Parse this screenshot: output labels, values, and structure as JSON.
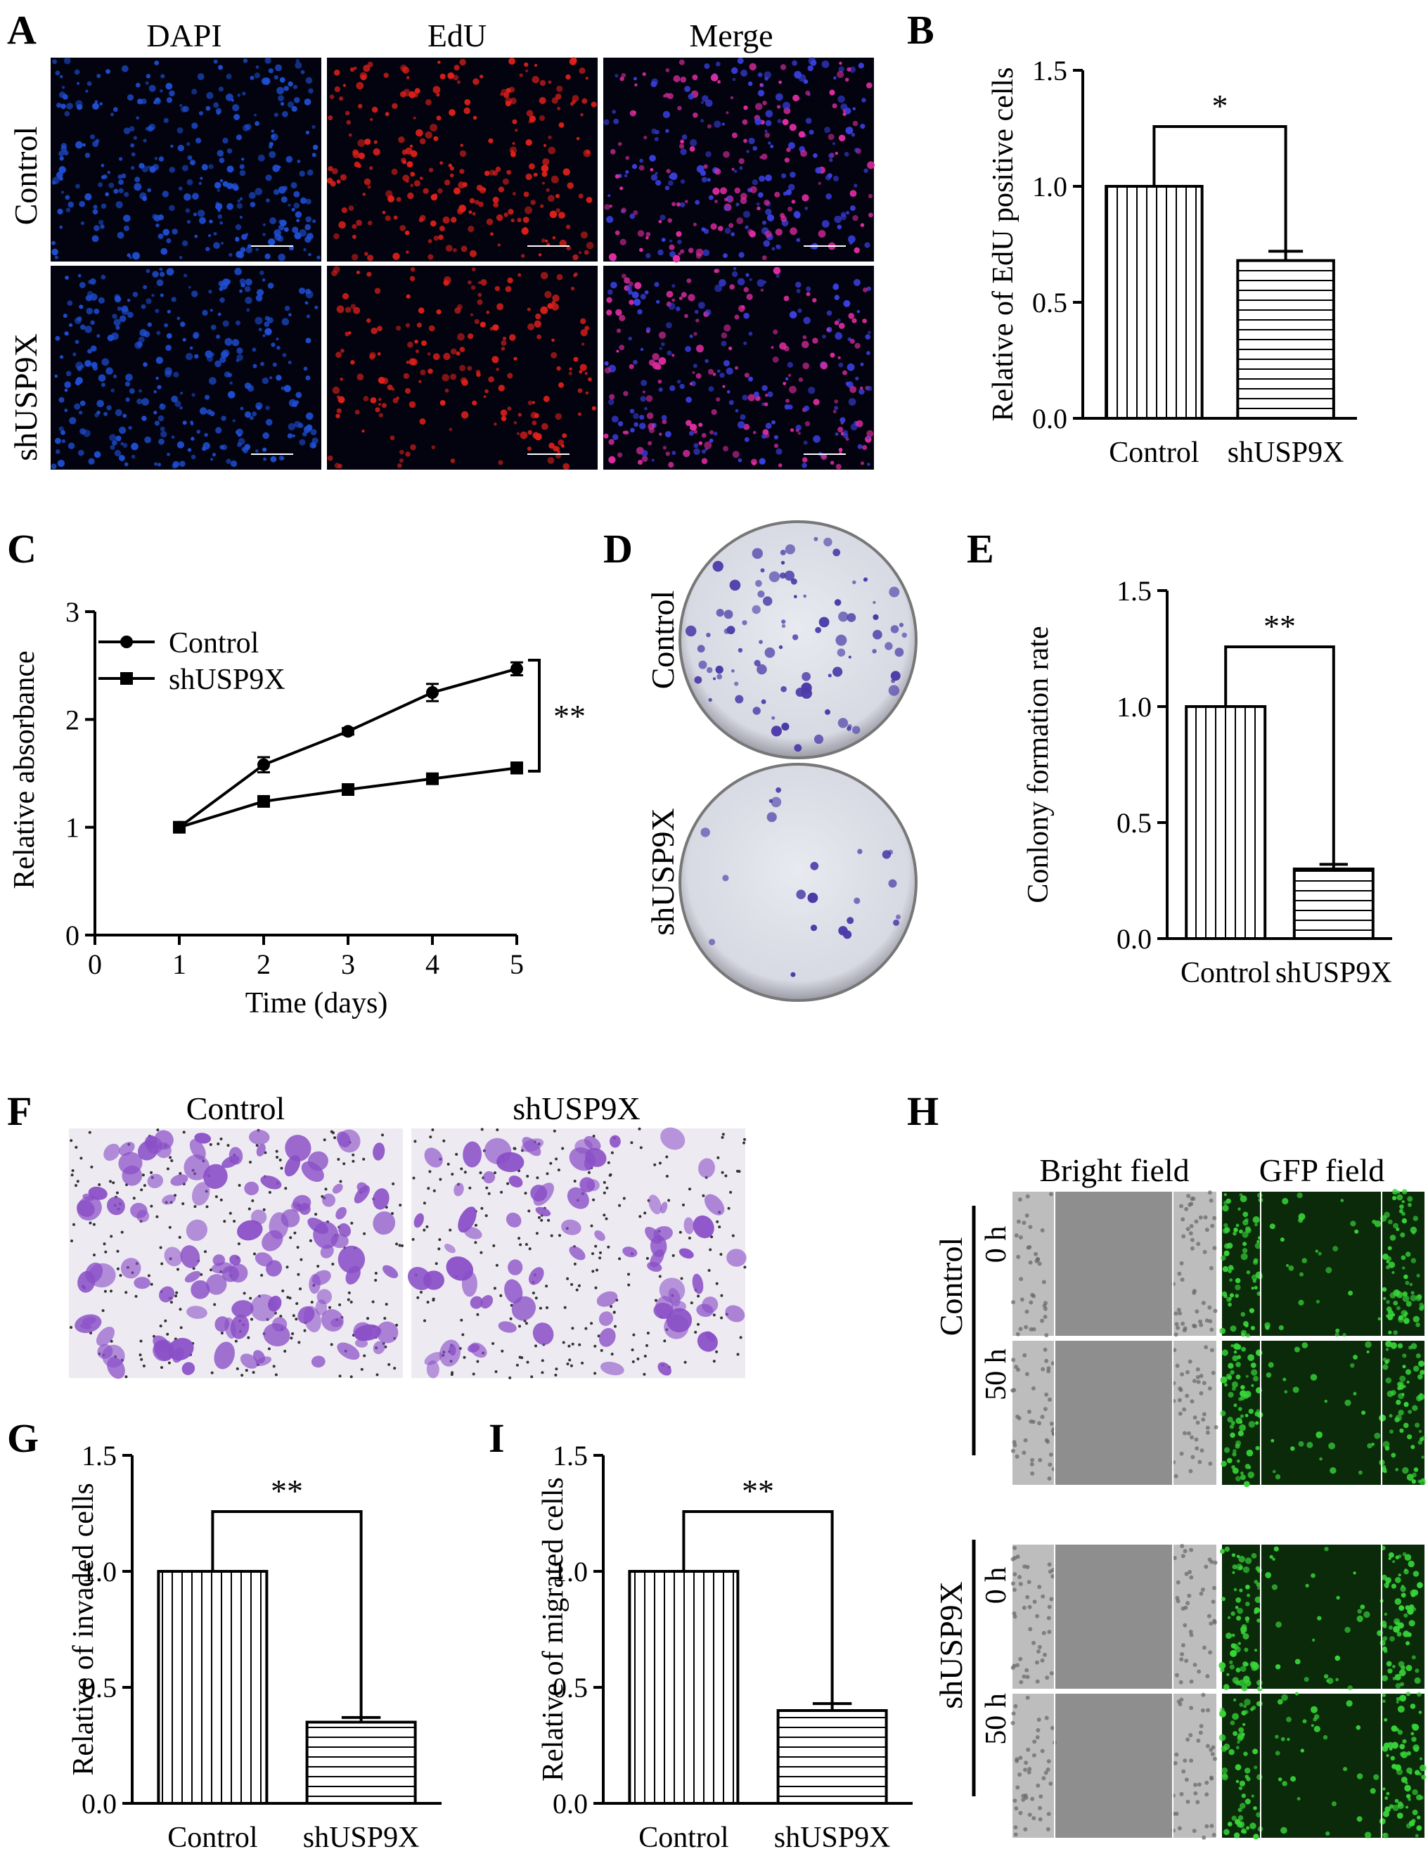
{
  "panels": {
    "A": {
      "label": "A",
      "columns": [
        "DAPI",
        "EdU",
        "Merge"
      ],
      "rows": [
        "Control",
        "shUSP9X"
      ],
      "colors": {
        "dapi": "#1f4fd6",
        "edu": "#e0201a",
        "merge_a": "#3a3fe0",
        "merge_b": "#e02ca0"
      }
    },
    "D": {
      "label": "D",
      "rows": [
        "Control",
        "shUSP9X"
      ],
      "colony_color": "#4b3aa8"
    },
    "F": {
      "label": "F",
      "columns": [
        "Control",
        "shUSP9X"
      ],
      "stain_color": "#8a4fc7"
    },
    "H": {
      "label": "H",
      "columns": [
        "Bright field",
        "GFP field"
      ],
      "groups": [
        {
          "name": "Control",
          "times": [
            "0 h",
            "50 h"
          ]
        },
        {
          "name": "shUSP9X",
          "times": [
            "0 h",
            "50 h"
          ]
        }
      ],
      "gfp_color": "#38d438"
    }
  },
  "chart_data": [
    {
      "id": "B",
      "label": "B",
      "type": "bar",
      "categories": [
        "Control",
        "shUSP9X"
      ],
      "values": [
        1.0,
        0.68
      ],
      "errors": [
        0,
        0.04
      ],
      "ylabel": "Relative of EdU positive cells",
      "ylim": [
        0,
        1.5
      ],
      "yticks": [
        "0.0",
        "0.5",
        "1.0",
        "1.5"
      ],
      "significance": "*",
      "hatch": [
        "vertical",
        "horizontal"
      ]
    },
    {
      "id": "C",
      "label": "C",
      "type": "line",
      "x": [
        1,
        2,
        3,
        4,
        5
      ],
      "xlabel": "Time (days)",
      "ylabel": "Relative absorbance",
      "xlim": [
        0,
        5
      ],
      "ylim": [
        0,
        3
      ],
      "xticks": [
        "0",
        "1",
        "2",
        "3",
        "4",
        "5"
      ],
      "yticks": [
        "0",
        "1",
        "2",
        "3"
      ],
      "series": [
        {
          "name": "Control",
          "marker": "circle",
          "values": [
            1.0,
            1.58,
            1.89,
            2.25,
            2.47
          ],
          "errors": [
            0.02,
            0.07,
            0.03,
            0.08,
            0.06
          ]
        },
        {
          "name": "shUSP9X",
          "marker": "square",
          "values": [
            1.0,
            1.24,
            1.35,
            1.45,
            1.55
          ],
          "errors": [
            0.02,
            0.03,
            0.03,
            0.03,
            0.05
          ]
        }
      ],
      "significance": "**",
      "legend": "top-left"
    },
    {
      "id": "E",
      "label": "E",
      "type": "bar",
      "categories": [
        "Control",
        "shUSP9X"
      ],
      "values": [
        1.0,
        0.3
      ],
      "errors": [
        0,
        0.02
      ],
      "ylabel": "Conlony formation rate",
      "ylim": [
        0,
        1.5
      ],
      "yticks": [
        "0.0",
        "0.5",
        "1.0",
        "1.5"
      ],
      "significance": "**",
      "hatch": [
        "vertical",
        "horizontal"
      ]
    },
    {
      "id": "G",
      "label": "G",
      "type": "bar",
      "categories": [
        "Control",
        "shUSP9X"
      ],
      "values": [
        1.0,
        0.35
      ],
      "errors": [
        0,
        0.02
      ],
      "ylabel": "Relative of invaded cells",
      "ylim": [
        0,
        1.5
      ],
      "yticks": [
        "0.0",
        "0.5",
        "1.0",
        "1.5"
      ],
      "significance": "**",
      "hatch": [
        "vertical",
        "horizontal"
      ]
    },
    {
      "id": "I",
      "label": "I",
      "type": "bar",
      "categories": [
        "Control",
        "shUSP9X"
      ],
      "values": [
        1.0,
        0.4
      ],
      "errors": [
        0,
        0.03
      ],
      "ylabel": "Relative of migrated cells",
      "ylim": [
        0,
        1.5
      ],
      "yticks": [
        "0.0",
        "0.5",
        "1.0",
        "1.5"
      ],
      "significance": "**",
      "hatch": [
        "vertical",
        "horizontal"
      ]
    }
  ]
}
